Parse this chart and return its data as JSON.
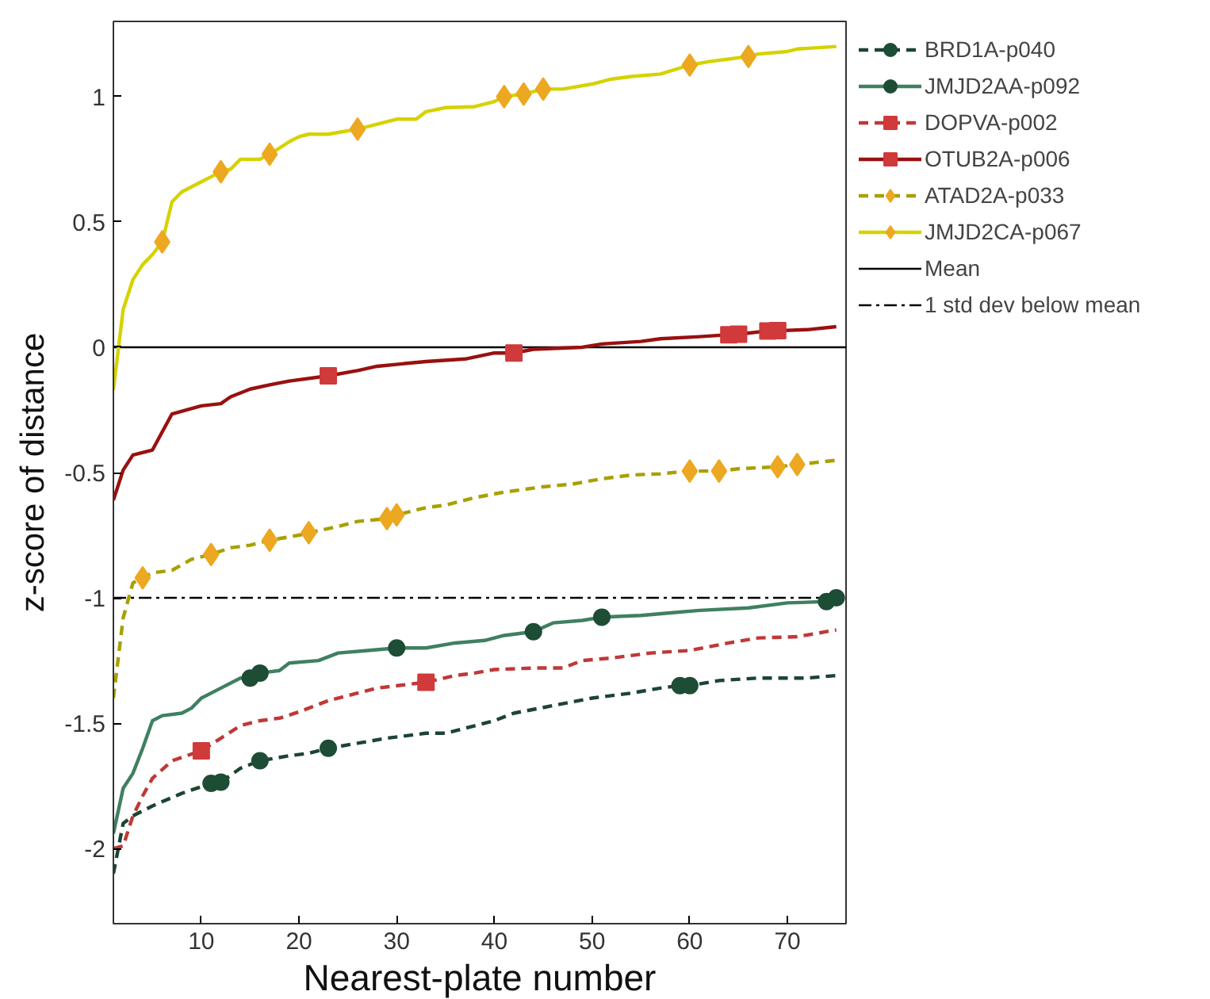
{
  "chart_data": {
    "type": "line",
    "xlabel": "Nearest-plate number",
    "ylabel": "z-score of distance",
    "xlim": [
      1,
      76
    ],
    "ylim": [
      -2.3,
      1.3
    ],
    "xticks": [
      10,
      20,
      30,
      40,
      50,
      60,
      70
    ],
    "yticks": [
      -2,
      -1.5,
      -1,
      -0.5,
      0,
      0.5,
      1
    ],
    "grid": false,
    "legend": "right",
    "series": [
      {
        "name": "BRD1A-p040",
        "line_style": "dashed",
        "color": "#1c4532",
        "x": [
          1,
          2,
          3,
          5,
          8,
          11,
          12,
          14,
          16,
          19,
          21,
          23,
          26,
          29,
          33,
          35,
          38,
          40,
          42,
          46,
          50,
          54,
          57,
          59,
          60,
          63,
          67,
          72,
          75
        ],
        "values": [
          -2.1,
          -1.9,
          -1.87,
          -1.83,
          -1.78,
          -1.74,
          -1.735,
          -1.68,
          -1.65,
          -1.63,
          -1.62,
          -1.6,
          -1.58,
          -1.56,
          -1.54,
          -1.54,
          -1.51,
          -1.49,
          -1.46,
          -1.43,
          -1.4,
          -1.38,
          -1.36,
          -1.35,
          -1.35,
          -1.33,
          -1.32,
          -1.32,
          -1.31
        ]
      },
      {
        "type": "scatter",
        "marker": "circle",
        "color": "#1e4d36",
        "x": [
          11,
          12,
          16,
          23,
          59,
          60
        ],
        "values": [
          -1.74,
          -1.735,
          -1.65,
          -1.6,
          -1.35,
          -1.35
        ]
      },
      {
        "name": "JMJD2AA-p092",
        "line_style": "solid",
        "color": "#3f8060",
        "x": [
          1,
          2,
          3,
          4,
          5,
          6,
          8,
          9,
          10,
          12,
          14,
          15,
          16,
          18,
          19,
          22,
          24,
          27,
          30,
          33,
          36,
          39,
          41,
          44,
          46,
          49,
          51,
          55,
          58,
          61,
          66,
          70,
          74,
          75
        ],
        "values": [
          -1.94,
          -1.76,
          -1.7,
          -1.6,
          -1.49,
          -1.47,
          -1.46,
          -1.44,
          -1.4,
          -1.36,
          -1.32,
          -1.32,
          -1.3,
          -1.29,
          -1.26,
          -1.25,
          -1.22,
          -1.21,
          -1.2,
          -1.2,
          -1.18,
          -1.17,
          -1.15,
          -1.135,
          -1.1,
          -1.09,
          -1.077,
          -1.07,
          -1.06,
          -1.05,
          -1.04,
          -1.02,
          -1.015,
          -1.0
        ]
      },
      {
        "type": "scatter",
        "marker": "circle",
        "color": "#1e4d36",
        "x": [
          15,
          16,
          30,
          44,
          51,
          74,
          75
        ],
        "values": [
          -1.32,
          -1.3,
          -1.2,
          -1.135,
          -1.077,
          -1.015,
          -1.0
        ]
      },
      {
        "name": "DOPVA-p002",
        "line_style": "dashed",
        "color": "#c03838",
        "x": [
          1,
          2,
          3,
          4,
          5,
          7,
          10,
          12,
          14,
          16,
          18,
          20,
          23,
          26,
          28,
          31,
          33,
          36,
          38,
          40,
          44,
          47,
          49,
          52,
          56,
          60,
          64,
          67,
          71,
          75
        ],
        "values": [
          -2.0,
          -1.99,
          -1.87,
          -1.79,
          -1.72,
          -1.65,
          -1.61,
          -1.56,
          -1.51,
          -1.49,
          -1.48,
          -1.455,
          -1.41,
          -1.38,
          -1.36,
          -1.346,
          -1.337,
          -1.31,
          -1.3,
          -1.286,
          -1.28,
          -1.28,
          -1.25,
          -1.24,
          -1.22,
          -1.21,
          -1.18,
          -1.16,
          -1.155,
          -1.128
        ]
      },
      {
        "type": "scatter",
        "marker": "square",
        "color": "#d03a3a",
        "x": [
          10,
          33
        ],
        "values": [
          -1.61,
          -1.337
        ]
      },
      {
        "name": "OTUB2A-p006",
        "line_style": "solid",
        "color": "#9a1010",
        "x": [
          1,
          2,
          3,
          5,
          7,
          10,
          12,
          13,
          15,
          17,
          19,
          23,
          26,
          28,
          33,
          37,
          40,
          42,
          44,
          49,
          51,
          55,
          57,
          61,
          64,
          65,
          68,
          69,
          72,
          75
        ],
        "values": [
          -0.61,
          -0.49,
          -0.43,
          -0.41,
          -0.266,
          -0.234,
          -0.225,
          -0.198,
          -0.167,
          -0.15,
          -0.135,
          -0.114,
          -0.093,
          -0.076,
          -0.057,
          -0.047,
          -0.023,
          -0.023,
          -0.008,
          0.0,
          0.013,
          0.023,
          0.034,
          0.042,
          0.05,
          0.052,
          0.065,
          0.066,
          0.07,
          0.082
        ]
      },
      {
        "type": "scatter",
        "marker": "square",
        "color": "#d03a3a",
        "x": [
          23,
          42,
          64,
          65,
          68,
          69
        ],
        "values": [
          -0.114,
          -0.023,
          0.05,
          0.052,
          0.065,
          0.066
        ]
      },
      {
        "name": "ATAD2A-p033",
        "line_style": "dashed",
        "color": "#a8a000",
        "x": [
          1,
          2,
          3,
          4,
          5,
          7,
          9,
          11,
          13,
          15,
          17,
          20,
          21,
          24,
          26,
          29,
          30,
          33,
          35,
          38,
          41,
          45,
          48,
          51,
          54,
          57,
          60,
          63,
          65,
          69,
          71,
          75
        ],
        "values": [
          -1.4,
          -1.08,
          -0.94,
          -0.92,
          -0.9,
          -0.89,
          -0.846,
          -0.827,
          -0.8,
          -0.79,
          -0.77,
          -0.75,
          -0.74,
          -0.715,
          -0.695,
          -0.684,
          -0.669,
          -0.64,
          -0.63,
          -0.6,
          -0.578,
          -0.557,
          -0.546,
          -0.525,
          -0.51,
          -0.505,
          -0.494,
          -0.494,
          -0.485,
          -0.477,
          -0.468,
          -0.451
        ]
      },
      {
        "type": "scatter",
        "marker": "diamond",
        "color": "#eca820",
        "x": [
          4,
          11,
          17,
          21,
          29,
          30,
          60,
          63,
          69,
          71
        ],
        "values": [
          -0.92,
          -0.827,
          -0.77,
          -0.74,
          -0.684,
          -0.669,
          -0.494,
          -0.494,
          -0.477,
          -0.468
        ]
      },
      {
        "name": "JMJD2CA-p067",
        "line_style": "solid",
        "color": "#d6d200",
        "x": [
          1,
          2,
          3,
          4,
          5,
          6,
          7,
          8,
          10,
          12,
          13,
          14,
          16,
          17,
          19,
          20,
          21,
          23,
          26,
          28,
          30,
          32,
          33,
          35,
          38,
          40,
          41,
          43,
          45,
          47,
          50,
          51,
          52,
          54,
          57,
          60,
          62,
          66,
          67,
          70,
          71,
          75
        ],
        "values": [
          -0.17,
          0.15,
          0.27,
          0.33,
          0.37,
          0.42,
          0.58,
          0.62,
          0.66,
          0.7,
          0.71,
          0.75,
          0.75,
          0.77,
          0.82,
          0.84,
          0.85,
          0.85,
          0.87,
          0.89,
          0.91,
          0.91,
          0.94,
          0.956,
          0.96,
          0.98,
          1.0,
          1.01,
          1.03,
          1.03,
          1.05,
          1.06,
          1.07,
          1.08,
          1.09,
          1.126,
          1.14,
          1.16,
          1.17,
          1.18,
          1.19,
          1.2
        ]
      },
      {
        "type": "scatter",
        "marker": "diamond",
        "color": "#eca820",
        "x": [
          6,
          12,
          17,
          26,
          41,
          43,
          45,
          60,
          66
        ],
        "values": [
          0.42,
          0.7,
          0.77,
          0.87,
          1.0,
          1.01,
          1.03,
          1.126,
          1.16
        ]
      }
    ],
    "ref_lines": [
      {
        "axis": "y",
        "value": 0,
        "label": "Mean",
        "color": "#000000",
        "line_style": "solid"
      },
      {
        "axis": "y",
        "value": -1,
        "label": "1 std dev below mean",
        "color": "#000000",
        "line_style": "dashdot"
      }
    ]
  }
}
